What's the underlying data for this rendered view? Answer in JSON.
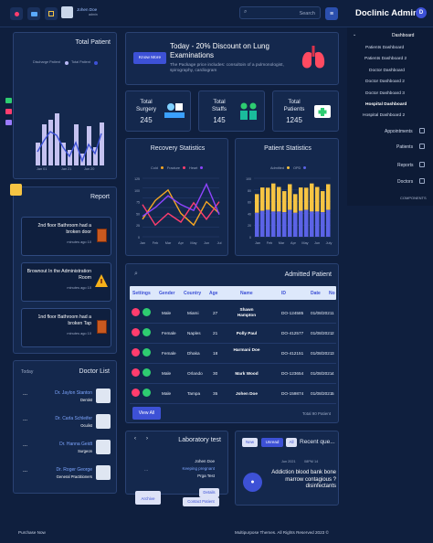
{
  "header": {
    "user_name": "Johen Doe",
    "user_role": "admin",
    "search_placeholder": "Search",
    "app_title": "Doclinic Admin"
  },
  "sidebar": {
    "dashboard": "Dashboard",
    "items": [
      "Patients Dashboard",
      "Patients Dashboard 2",
      "Doctor Dashboard",
      "Doctor Dashboard 2",
      "Doctor Dashboard 3",
      "Hospital Dashboard",
      "Hospital Dashboard 2"
    ],
    "sections": [
      "Appointments",
      "Patients",
      "Reports",
      "Doctors"
    ],
    "components": "COMPONENTS"
  },
  "total_patient": {
    "title": "Total Patient",
    "legend": [
      "Discharge Patient",
      "Total Patient"
    ],
    "ticks": [
      "Jan 01",
      "Jan 21",
      "Jun 20"
    ]
  },
  "promo": {
    "title": "Today - 20% Discount on Lung Examinations",
    "text": "The Package price includes: consultoin of a pulmonologist, spirography, cardiogram",
    "button": "Know More"
  },
  "stats": [
    {
      "label": "Total Surgery",
      "value": "245"
    },
    {
      "label": "Total Staffs",
      "value": "145"
    },
    {
      "label": "Total Patients",
      "value": "1245"
    }
  ],
  "recovery": {
    "title": "Recovery Statistics",
    "legend": [
      "Cold",
      "Fracture",
      "Heart"
    ],
    "months": [
      "Jan",
      "Feb",
      "Mar",
      "Apr",
      "May",
      "Jun",
      "Jul"
    ],
    "colors": [
      "#f5a623",
      "#ff3d6e",
      "#8e44ff"
    ]
  },
  "patient_stats": {
    "title": "Patient Statistics",
    "legend": [
      "Admitted",
      "OPD"
    ],
    "months": [
      "Jan",
      "Feb",
      "Mar",
      "Apr",
      "May",
      "Jun",
      "July"
    ],
    "colors": [
      "#f6c443",
      "#5b63e6"
    ]
  },
  "report": {
    "title": "Report",
    "items": [
      {
        "text": "2nd floor Bathroom had a broken door",
        "time": "minutes ago 10"
      },
      {
        "text": "Brownout In the Administration Room",
        "time": "minutes ago 10"
      },
      {
        "text": "1nd floor Bathroom had a broken Tap",
        "time": "minutes ago 10"
      }
    ]
  },
  "admitted": {
    "title": "Admitted Patient",
    "headers": [
      "Settings",
      "Gender",
      "Country",
      "Age",
      "Name",
      "ID",
      "Date",
      "No"
    ],
    "rows": [
      [
        "Male",
        "Miami",
        "27",
        "Shawn Hampton",
        "DO-124585",
        "01/08/2021",
        "1"
      ],
      [
        "Female",
        "Naples",
        "21",
        "Polly Paul",
        "DO-412577",
        "01/08/2021",
        "2"
      ],
      [
        "Female",
        "Dhaka",
        "18",
        "Harmani Doe",
        "DO-412151",
        "01/08/2021",
        "3"
      ],
      [
        "Male",
        "Orlando",
        "30",
        "Mark Wood",
        "DO-123654",
        "01/08/2021",
        "4"
      ],
      [
        "Male",
        "Tampa",
        "35",
        "Johen Doe",
        "DO-159874",
        "01/08/2021",
        "5"
      ]
    ],
    "view_all": "View All",
    "total": "Total 90 Patient"
  },
  "doctor_list": {
    "title": "Doctor List",
    "today": "Today",
    "doctors": [
      {
        "name": "Dr. Jaylon Stanton",
        "role": "Dentist"
      },
      {
        "name": "Dr. Carla Schleifer",
        "role": "Oculist"
      },
      {
        "name": "Dr. Hanna Geidt",
        "role": "Surgeon"
      },
      {
        "name": "Dr. Roger George",
        "role": "General Practitioners"
      }
    ]
  },
  "lab": {
    "title": "Laboratory test",
    "name": "Johen Doe",
    "status": "Keeping pregnant",
    "test": "Prga Test",
    "details": "Details",
    "archive": "Archive",
    "contact": "Contact Patient"
  },
  "recent": {
    "title": "Recent que...",
    "tabs": [
      "New",
      "Unread",
      "All"
    ],
    "date": "Jun 2021",
    "time": "08PM 14",
    "text": "Addiction blood bank bone marrow contagious ?disinfectants"
  },
  "footer": {
    "left": "Purchase Now",
    "right": "Multipurpose Themes. All Rights Reserved 2023 ©"
  }
}
